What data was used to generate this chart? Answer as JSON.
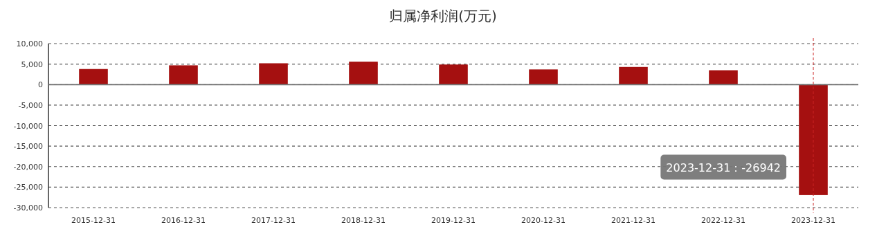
{
  "chart_data": {
    "type": "bar",
    "title": "归属净利润(万元)",
    "categories": [
      "2015-12-31",
      "2016-12-31",
      "2017-12-31",
      "2018-12-31",
      "2019-12-31",
      "2020-12-31",
      "2021-12-31",
      "2022-12-31",
      "2023-12-31"
    ],
    "series": [
      {
        "color": "#a51010",
        "values": [
          3800,
          4700,
          5200,
          5600,
          4900,
          3700,
          4300,
          3500,
          -26942
        ]
      }
    ],
    "ylim": [
      -30000,
      10000
    ],
    "yticks": [
      {
        "value": 10000,
        "label": "10,000"
      },
      {
        "value": 5000,
        "label": "5,000"
      },
      0,
      {
        "value": -5000,
        "label": "-5,000"
      },
      {
        "value": -10000,
        "label": "-10,000"
      },
      {
        "value": -15000,
        "label": "-15,000"
      },
      {
        "value": -20000,
        "label": "-20,000"
      },
      {
        "value": -25000,
        "label": "-25,000"
      },
      {
        "value": -30000,
        "label": "-30,000"
      }
    ],
    "grid": "y",
    "ref_lines": [
      {
        "axis": "x",
        "value": "2023-12-31",
        "color": "#cc2222",
        "line_style": "dashed"
      }
    ],
    "annotations": [
      "2023-12-31：-26942"
    ]
  }
}
